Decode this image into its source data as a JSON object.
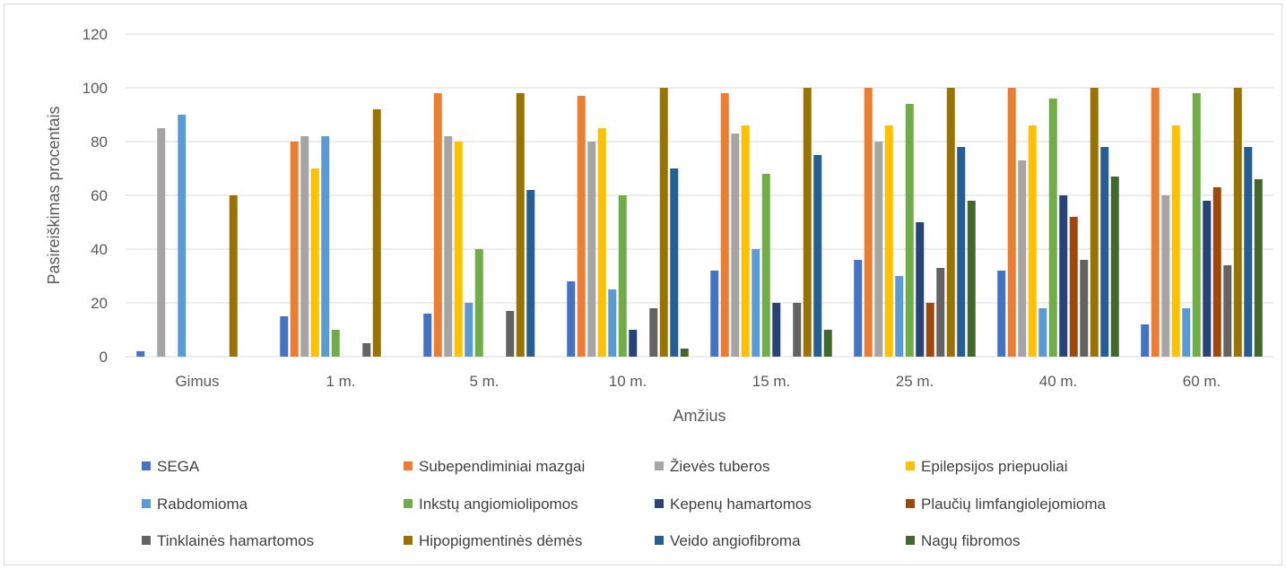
{
  "chart_data": {
    "type": "bar",
    "title": "",
    "xlabel": "Amžius",
    "ylabel": "Pasireiškimas procentais",
    "ylim": [
      0,
      120
    ],
    "yticks": [
      0,
      20,
      40,
      60,
      80,
      100,
      120
    ],
    "grid": true,
    "legend_position": "bottom",
    "categories": [
      "Gimus",
      "1 m.",
      "5 m.",
      "10 m.",
      "15 m.",
      "25 m.",
      "40 m.",
      "60 m."
    ],
    "series": [
      {
        "name": "SEGA",
        "color": "#4472c4",
        "values": [
          2,
          15,
          16,
          28,
          32,
          36,
          32,
          12
        ]
      },
      {
        "name": "Subependiminiai mazgai",
        "color": "#ed7d31",
        "values": [
          0,
          80,
          98,
          97,
          98,
          100,
          100,
          100
        ]
      },
      {
        "name": "Žievės tuberos",
        "color": "#a5a5a5",
        "values": [
          85,
          82,
          82,
          80,
          83,
          80,
          73,
          60
        ]
      },
      {
        "name": "Epilepsijos priepuoliai",
        "color": "#ffc000",
        "values": [
          0,
          70,
          80,
          85,
          86,
          86,
          86,
          86
        ]
      },
      {
        "name": "Rabdomioma",
        "color": "#5b9bd5",
        "values": [
          90,
          82,
          20,
          25,
          40,
          30,
          18,
          18
        ]
      },
      {
        "name": "Inkstų angiomiolipomos",
        "color": "#70ad47",
        "values": [
          0,
          10,
          40,
          60,
          68,
          94,
          96,
          98
        ]
      },
      {
        "name": "Kepenų hamartomos",
        "color": "#264478",
        "values": [
          0,
          0,
          0,
          10,
          20,
          50,
          60,
          58
        ]
      },
      {
        "name": "Plaučių limfangiolejomioma",
        "color": "#9e480e",
        "values": [
          0,
          0,
          0,
          0,
          0,
          20,
          52,
          63
        ]
      },
      {
        "name": "Tinklainės hamartomos",
        "color": "#636363",
        "values": [
          0,
          5,
          17,
          18,
          20,
          33,
          36,
          34
        ]
      },
      {
        "name": "Hipopigmentinės dėmės",
        "color": "#997300",
        "values": [
          60,
          92,
          98,
          100,
          100,
          100,
          100,
          100
        ]
      },
      {
        "name": "Veido angiofibroma",
        "color": "#255e91",
        "values": [
          0,
          0,
          62,
          70,
          75,
          78,
          78,
          78
        ]
      },
      {
        "name": "Nagų fibromos",
        "color": "#43682b",
        "values": [
          0,
          0,
          0,
          3,
          10,
          58,
          67,
          66
        ]
      }
    ]
  }
}
